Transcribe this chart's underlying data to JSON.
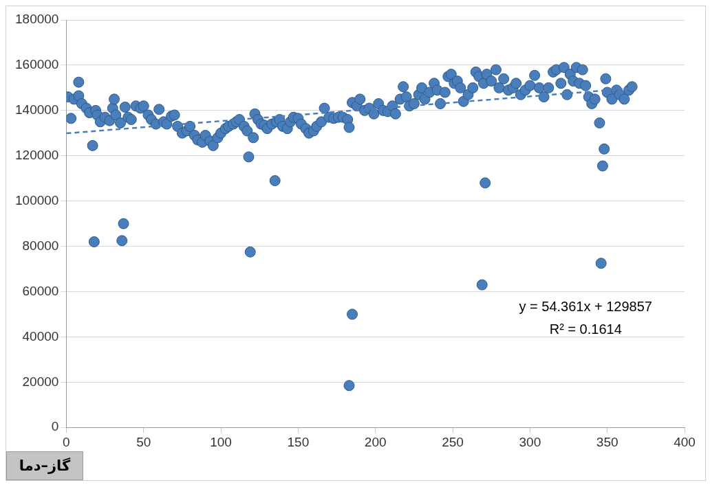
{
  "chart_data": {
    "type": "scatter",
    "title": "گاز–دما",
    "annotations": [
      "y = 54.361x + 129857",
      "R² = 0.1614"
    ],
    "xlim": [
      0,
      400
    ],
    "xticks": [
      0,
      50,
      100,
      150,
      200,
      250,
      300,
      350,
      400
    ],
    "ylim": [
      0,
      180000
    ],
    "yticks": [
      0,
      20000,
      40000,
      60000,
      80000,
      100000,
      120000,
      140000,
      160000,
      180000
    ],
    "grid": "y",
    "legend": false,
    "marker": "circle",
    "series": [
      {
        "color": "#4a7ebb",
        "x": [
          1,
          3,
          5,
          8,
          8,
          10,
          13,
          15,
          17,
          18,
          19,
          20,
          22,
          25,
          28,
          30,
          31,
          32,
          35,
          36,
          37,
          38,
          40,
          42,
          45,
          48,
          50,
          53,
          55,
          58,
          60,
          63,
          65,
          68,
          70,
          72,
          75,
          78,
          80,
          83,
          85,
          88,
          90,
          93,
          95,
          98,
          100,
          103,
          105,
          108,
          110,
          112,
          115,
          117,
          118,
          119,
          121,
          122,
          124,
          126,
          128,
          130,
          133,
          135,
          136,
          138,
          140,
          143,
          145,
          147,
          150,
          152,
          155,
          157,
          160,
          162,
          165,
          167,
          170,
          173,
          176,
          179,
          182,
          183,
          183,
          185,
          185,
          188,
          190,
          193,
          196,
          199,
          202,
          205,
          208,
          211,
          213,
          216,
          218,
          220,
          222,
          225,
          228,
          230,
          232,
          235,
          238,
          240,
          242,
          245,
          247,
          249,
          251,
          253,
          255,
          257,
          260,
          263,
          265,
          267,
          269,
          270,
          271,
          272,
          275,
          278,
          280,
          283,
          286,
          289,
          291,
          294,
          297,
          300,
          303,
          306,
          309,
          312,
          315,
          317,
          320,
          322,
          324,
          326,
          328,
          330,
          332,
          334,
          336,
          338,
          340,
          342,
          345,
          346,
          347,
          348,
          349,
          350,
          353,
          356,
          358,
          361,
          364,
          366
        ],
        "values": [
          146000,
          136500,
          145000,
          146500,
          152500,
          143000,
          141000,
          139000,
          124500,
          82000,
          140000,
          138000,
          135000,
          137000,
          135500,
          141000,
          145000,
          138000,
          134500,
          82500,
          90000,
          141500,
          137000,
          136000,
          142000,
          141000,
          142000,
          138000,
          136000,
          134000,
          140500,
          135000,
          134000,
          137500,
          138000,
          133000,
          130000,
          131000,
          133000,
          129000,
          127000,
          126000,
          129000,
          126500,
          124500,
          128000,
          130000,
          132000,
          133000,
          134000,
          135000,
          136000,
          133000,
          131000,
          119500,
          77500,
          128000,
          138500,
          136000,
          134000,
          133500,
          132000,
          134000,
          109000,
          135000,
          136000,
          133000,
          132000,
          135000,
          137000,
          136500,
          134000,
          132000,
          130000,
          131000,
          133000,
          135000,
          141000,
          137000,
          136500,
          137000,
          137000,
          136000,
          132500,
          18500,
          143500,
          50000,
          142000,
          145000,
          140000,
          141000,
          138500,
          143000,
          140000,
          139500,
          142000,
          138500,
          145000,
          150500,
          146000,
          142000,
          143000,
          147000,
          150000,
          145000,
          148000,
          152000,
          149000,
          143000,
          148000,
          155000,
          156000,
          152000,
          153000,
          150000,
          144000,
          147000,
          150000,
          157000,
          155000,
          63000,
          152000,
          108000,
          156000,
          153000,
          158000,
          150000,
          154000,
          149000,
          150000,
          152000,
          147000,
          149000,
          151000,
          155500,
          150000,
          146000,
          150000,
          157000,
          158000,
          152000,
          159000,
          147000,
          156000,
          153000,
          159000,
          152000,
          158000,
          151000,
          146000,
          143000,
          145000,
          134500,
          72500,
          115500,
          123000,
          154000,
          148000,
          145000,
          149000,
          147000,
          145000,
          149000,
          150500
        ]
      },
      {
        "type": "line",
        "color": "#4a7ebb",
        "line_style": "dashed",
        "marker": "none",
        "x": [
          0,
          366
        ],
        "values": [
          129900,
          149800
        ]
      }
    ]
  }
}
